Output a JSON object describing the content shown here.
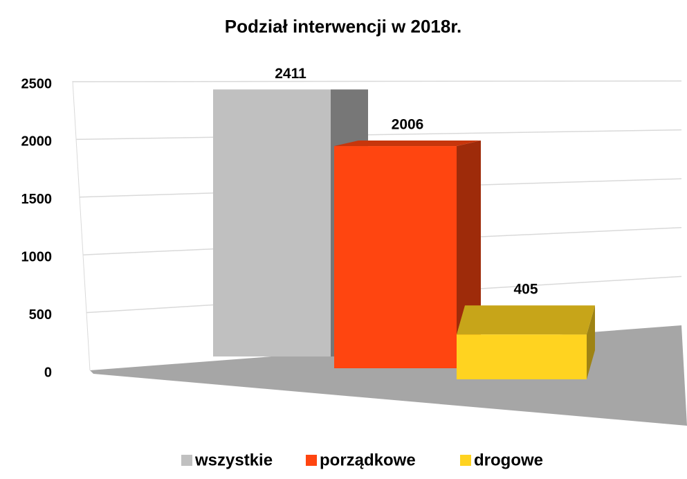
{
  "chart_data": {
    "type": "bar3d",
    "title": "Podział interwencji w 2018r.",
    "series": [
      {
        "name": "wszystkie",
        "color": "#c0c0c0",
        "values": [
          2411
        ]
      },
      {
        "name": "porządkowe",
        "color": "#ff4510",
        "values": [
          2006
        ]
      },
      {
        "name": "drogowe",
        "color": "#ffd320",
        "values": [
          405
        ]
      }
    ],
    "ylim": [
      0,
      2500
    ],
    "yticks": [
      0,
      500,
      1000,
      1500,
      2000,
      2500
    ],
    "grid": true,
    "legend": "bottom"
  }
}
